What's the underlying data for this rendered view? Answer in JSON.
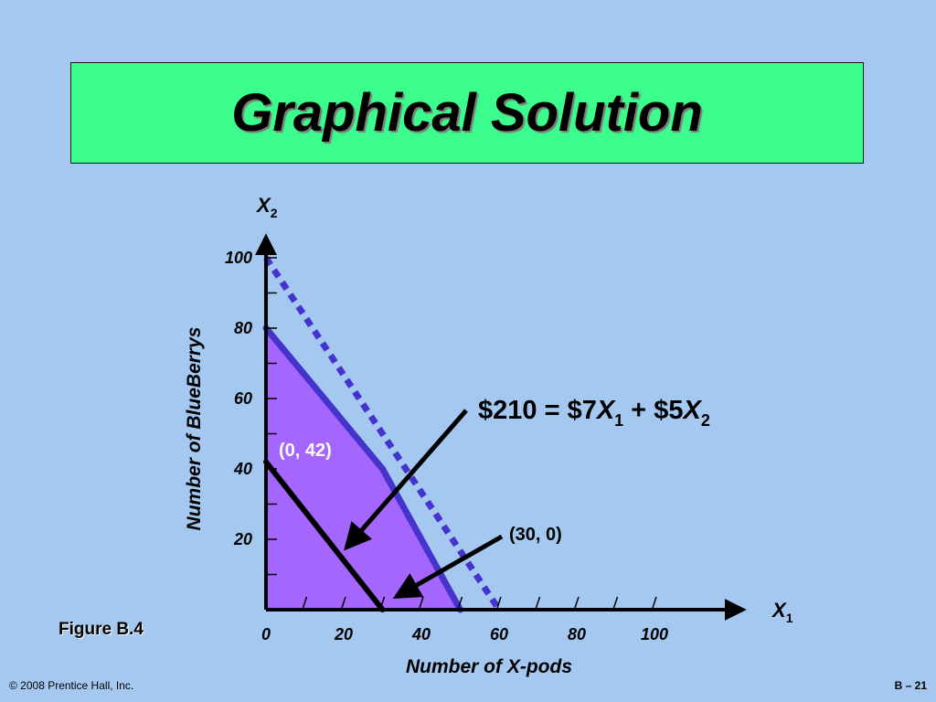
{
  "slide": {
    "title": "Graphical Solution",
    "figure_label": "Figure B.4",
    "copyright": "© 2008 Prentice Hall, Inc.",
    "page_number": "B – 21"
  },
  "colors": {
    "background": "#a5c8f1",
    "title_bg": "#3bfc8c",
    "feasible_region": "#a466fd",
    "constraint_line": "#4433cc",
    "isoprofit_line": "#000000"
  },
  "chart_data": {
    "type": "line",
    "title": "",
    "xlabel": "Number of X-pods",
    "ylabel": "Number of BlueBerrys",
    "x_axis_symbol": "X",
    "x_axis_subscript": "1",
    "y_axis_symbol": "X",
    "y_axis_subscript": "2",
    "xlim": [
      0,
      120
    ],
    "ylim": [
      0,
      100
    ],
    "x_ticks": [
      0,
      20,
      40,
      60,
      80,
      100
    ],
    "x_tick_labels": [
      "0",
      "20",
      "40",
      "60",
      "80",
      "100"
    ],
    "y_ticks": [
      20,
      40,
      60,
      80,
      100
    ],
    "y_tick_labels": [
      "20",
      "40",
      "60",
      "80",
      "100"
    ],
    "x_minor_step": 10,
    "y_minor_step": 10,
    "feasible_region": [
      [
        0,
        0
      ],
      [
        0,
        80
      ],
      [
        30,
        40
      ],
      [
        50,
        0
      ]
    ],
    "constraint_segments": [
      [
        [
          0,
          80
        ],
        [
          30,
          40
        ]
      ],
      [
        [
          30,
          40
        ],
        [
          50,
          0
        ]
      ]
    ],
    "dotted_line": [
      [
        0,
        100
      ],
      [
        60,
        0
      ]
    ],
    "isoprofit_line": [
      [
        0,
        42
      ],
      [
        30,
        0
      ]
    ],
    "equation": {
      "constant": "$210 = $7",
      "var1": "X",
      "sub1": "1",
      "plus": " + $5",
      "var2": "X",
      "sub2": "2"
    },
    "annotations": [
      {
        "text": "(0, 42)",
        "at": [
          0,
          42
        ]
      },
      {
        "text": "(30, 0)",
        "at": [
          30,
          0
        ]
      }
    ],
    "grid": false
  }
}
